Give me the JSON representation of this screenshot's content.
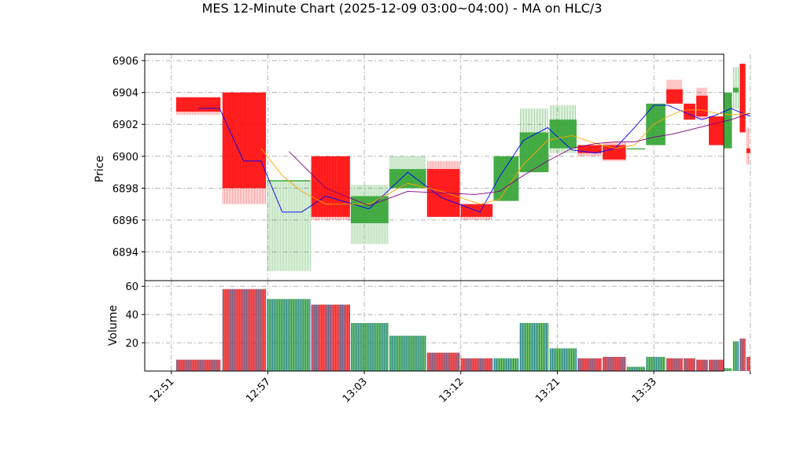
{
  "chart_data": {
    "type": "candlestick",
    "title": "MES 12-Minute Chart (2025-12-09 03:00~04:00) - MA on HLC/3",
    "price_axis": {
      "ylabel": "Price",
      "ylim": [
        6892.2,
        6906.4
      ],
      "ticks": [
        6894,
        6896,
        6898,
        6900,
        6902,
        6904,
        6906
      ],
      "tick_labels": [
        "6894",
        "6896",
        "6898",
        "6900",
        "6902",
        "6904",
        "6906"
      ]
    },
    "volume_axis": {
      "ylabel": "Volume",
      "ylim": [
        0,
        64
      ],
      "ticks": [
        20,
        40,
        60
      ],
      "tick_labels": [
        "20",
        "40",
        "60"
      ]
    },
    "x_axis": {
      "xlim": [
        12.25,
        72.25
      ],
      "ticks": [
        15,
        25,
        35,
        45,
        55,
        65,
        75
      ],
      "tick_labels": [
        "12:51",
        "12:57",
        "13:03",
        "13:12",
        "13:21",
        "13:33",
        ""
      ]
    },
    "grid": true,
    "colors": {
      "up": "#2ca02c",
      "down": "#ff0000",
      "ma_fast": "#0000ff",
      "ma_mid": "#ffa500",
      "ma_slow": "#800080",
      "volume_edge": "#1f77b4"
    },
    "bars": [
      {
        "x0": 15.5,
        "x1": 20.1,
        "open": 6903.7,
        "high": 6903.7,
        "low": 6902.6,
        "close": 6902.8,
        "volume": 8
      },
      {
        "x0": 20.3,
        "x1": 24.8,
        "open": 6904.0,
        "high": 6904.0,
        "low": 6897.0,
        "close": 6898.0,
        "volume": 58
      },
      {
        "x0": 24.9,
        "x1": 29.4,
        "open": 6898.5,
        "high": 6898.5,
        "low": 6892.8,
        "close": 6898.5,
        "volume": 51
      },
      {
        "x0": 29.5,
        "x1": 33.5,
        "open": 6900.0,
        "high": 6900.0,
        "low": 6896.0,
        "close": 6896.2,
        "volume": 47
      },
      {
        "x0": 33.6,
        "x1": 37.5,
        "open": 6895.8,
        "high": 6898.2,
        "low": 6894.5,
        "close": 6897.5,
        "volume": 34
      },
      {
        "x0": 37.6,
        "x1": 41.4,
        "open": 6898.0,
        "high": 6900.0,
        "low": 6898.0,
        "close": 6899.2,
        "volume": 25
      },
      {
        "x0": 41.5,
        "x1": 44.9,
        "open": 6899.2,
        "high": 6899.7,
        "low": 6896.2,
        "close": 6896.2,
        "volume": 13
      },
      {
        "x0": 45.0,
        "x1": 48.3,
        "open": 6897.0,
        "high": 6897.0,
        "low": 6896.0,
        "close": 6896.2,
        "volume": 9
      },
      {
        "x0": 48.4,
        "x1": 51.0,
        "open": 6897.2,
        "high": 6900.0,
        "low": 6897.2,
        "close": 6900.0,
        "volume": 9
      },
      {
        "x0": 51.1,
        "x1": 54.1,
        "open": 6899.0,
        "high": 6903.0,
        "low": 6899.0,
        "close": 6901.5,
        "volume": 34
      },
      {
        "x0": 54.2,
        "x1": 57.0,
        "open": 6900.5,
        "high": 6903.2,
        "low": 6900.2,
        "close": 6902.3,
        "volume": 16
      },
      {
        "x0": 57.1,
        "x1": 59.6,
        "open": 6900.7,
        "high": 6900.7,
        "low": 6900.0,
        "close": 6900.2,
        "volume": 9
      },
      {
        "x0": 59.7,
        "x1": 62.1,
        "open": 6900.7,
        "high": 6900.9,
        "low": 6899.7,
        "close": 6899.8,
        "volume": 10
      },
      {
        "x0": 62.2,
        "x1": 64.1,
        "open": 6900.5,
        "high": 6900.5,
        "low": 6900.5,
        "close": 6900.5,
        "volume": 3
      },
      {
        "x0": 64.2,
        "x1": 66.2,
        "open": 6900.7,
        "high": 6903.3,
        "low": 6900.7,
        "close": 6903.3,
        "volume": 10
      },
      {
        "x0": 66.3,
        "x1": 68.0,
        "open": 6904.2,
        "high": 6904.8,
        "low": 6903.3,
        "close": 6903.3,
        "volume": 9
      },
      {
        "x0": 68.1,
        "x1": 69.3,
        "open": 6903.3,
        "high": 6903.3,
        "low": 6902.3,
        "close": 6902.3,
        "volume": 9
      },
      {
        "x0": 69.4,
        "x1": 70.6,
        "open": 6903.8,
        "high": 6904.3,
        "low": 6902.3,
        "close": 6902.5,
        "volume": 8
      },
      {
        "x0": 70.7,
        "x1": 72.2,
        "open": 6902.5,
        "high": 6902.5,
        "low": 6900.7,
        "close": 6900.7,
        "volume": 8
      },
      {
        "x0": 72.3,
        "x1": 73.1,
        "open": 6900.5,
        "high": 6904.0,
        "low": 6900.5,
        "close": 6904.0,
        "volume": 2
      },
      {
        "x0": 73.2,
        "x1": 73.8,
        "open": 6904.0,
        "high": 6905.6,
        "low": 6903.0,
        "close": 6904.3,
        "volume": 21
      },
      {
        "x0": 73.9,
        "x1": 74.5,
        "open": 6905.8,
        "high": 6905.8,
        "low": 6901.5,
        "close": 6901.5,
        "volume": 23
      },
      {
        "x0": 74.6,
        "x1": 75.0,
        "open": 6900.5,
        "high": 6901.8,
        "low": 6899.5,
        "close": 6900.2,
        "volume": 10
      }
    ],
    "series": [
      {
        "color": "#0000ff",
        "x": [
          17.8,
          20.0,
          22.5,
          24.3,
          26.5,
          28.5,
          31.0,
          35.5,
          39.5,
          43.0,
          47.0,
          49.0,
          51.5,
          54.0,
          56.5,
          59.0,
          61.0,
          63.0,
          65.0,
          66.5,
          68.0,
          70.0,
          71.5,
          73.0,
          75.0
        ],
        "y": [
          6903.0,
          6903.0,
          6899.7,
          6899.7,
          6896.5,
          6896.5,
          6897.5,
          6896.7,
          6899.0,
          6897.4,
          6896.5,
          6898.7,
          6901.0,
          6901.8,
          6900.4,
          6900.2,
          6900.5,
          6901.8,
          6903.2,
          6903.2,
          6902.8,
          6902.3,
          6902.6,
          6903.0,
          6902.5
        ]
      },
      {
        "color": "#ffa500",
        "x": [
          24.3,
          26.5,
          28.5,
          31.0,
          35.5,
          39.5,
          43.0,
          47.0,
          49.0,
          51.5,
          54.0,
          56.5,
          59.0,
          61.0,
          63.0,
          65.0,
          66.5,
          68.0,
          70.0,
          71.5,
          73.0,
          75.0
        ],
        "y": [
          6900.5,
          6898.8,
          6897.8,
          6897.0,
          6897.0,
          6898.3,
          6897.8,
          6897.0,
          6897.3,
          6899.5,
          6901.0,
          6901.3,
          6900.8,
          6900.5,
          6900.7,
          6902.0,
          6902.5,
          6902.9,
          6902.9,
          6902.7,
          6902.6,
          6902.7
        ]
      },
      {
        "color": "#800080",
        "x": [
          27.2,
          31.0,
          35.5,
          39.5,
          43.0,
          46.5,
          49.0,
          51.5,
          54.0,
          56.5,
          59.0,
          61.0,
          63.0,
          65.0,
          67.0,
          69.0,
          71.0,
          73.0,
          75.0
        ],
        "y": [
          6900.3,
          6898.0,
          6896.9,
          6897.8,
          6897.7,
          6897.6,
          6897.8,
          6898.8,
          6899.7,
          6900.5,
          6900.8,
          6900.9,
          6900.9,
          6901.2,
          6901.4,
          6901.7,
          6902.0,
          6902.3,
          6902.7
        ]
      }
    ]
  }
}
